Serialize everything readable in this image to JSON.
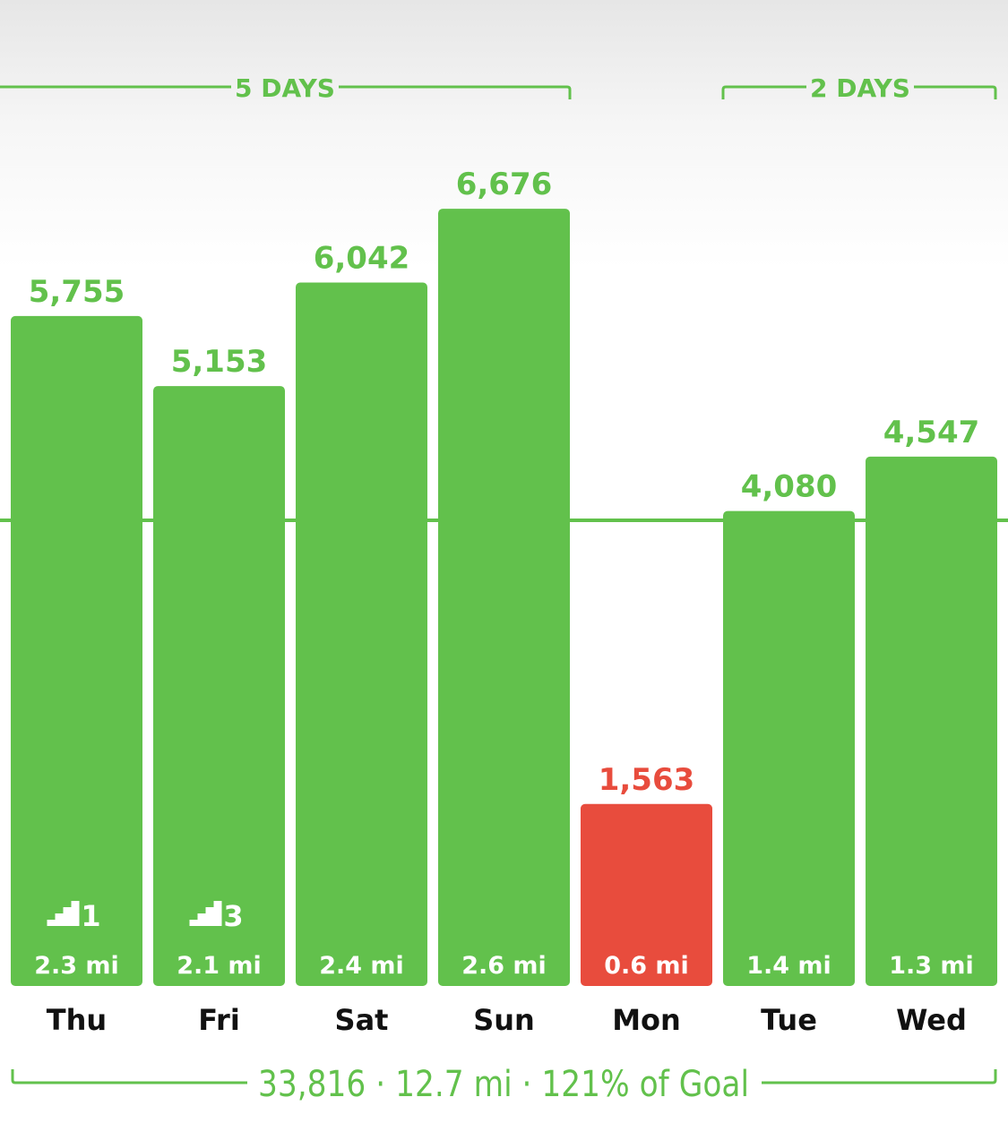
{
  "colors": {
    "goal_met": "#62c14c",
    "goal_missed": "#e84c3d",
    "text_dark": "#111111",
    "text_light": "#ffffff"
  },
  "chart_data": {
    "type": "bar",
    "categories": [
      "Thu",
      "Fri",
      "Sat",
      "Sun",
      "Mon",
      "Tue",
      "Wed"
    ],
    "values": [
      5755,
      5153,
      6042,
      6676,
      1563,
      4080,
      4547
    ],
    "value_labels": [
      "5,755",
      "5,153",
      "6,042",
      "6,676",
      "1,563",
      "4,080",
      "4,547"
    ],
    "distances": [
      "2.3 mi",
      "2.1 mi",
      "2.4 mi",
      "2.6 mi",
      "0.6 mi",
      "1.4 mi",
      "1.3 mi"
    ],
    "flights": [
      "1",
      "3",
      "",
      "",
      "",
      "",
      ""
    ],
    "goal_met": [
      true,
      true,
      true,
      true,
      false,
      true,
      true
    ],
    "goal_line": 4000,
    "ylim": [
      0,
      7000
    ],
    "grid": false,
    "streaks": [
      {
        "label": "5 DAYS",
        "from": 0,
        "to": 3
      },
      {
        "label": "2 DAYS",
        "from": 5,
        "to": 6
      }
    ],
    "summary": "33,816 · 12.7 mi · 121% of Goal"
  }
}
